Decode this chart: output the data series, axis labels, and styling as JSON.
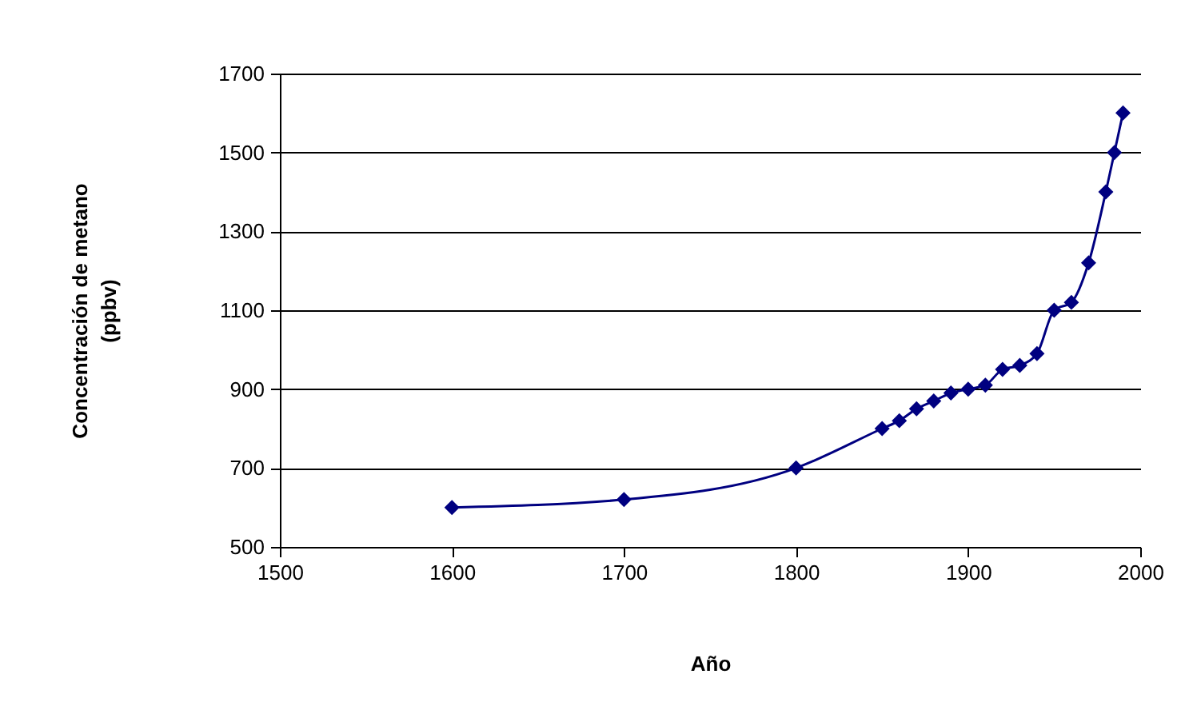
{
  "chart_data": {
    "type": "line",
    "xlabel": "Año",
    "ylabel": "Concentración de metano\n(ppbv)",
    "x": [
      1600,
      1700,
      1800,
      1850,
      1860,
      1870,
      1880,
      1890,
      1900,
      1910,
      1920,
      1930,
      1940,
      1950,
      1960,
      1970,
      1980,
      1985,
      1990
    ],
    "series": [
      {
        "color": "#000080",
        "values": [
          600,
          620,
          700,
          800,
          820,
          850,
          870,
          890,
          900,
          910,
          950,
          960,
          990,
          1100,
          1120,
          1220,
          1400,
          1500,
          1600
        ]
      }
    ],
    "xlim": [
      1500,
      2000
    ],
    "xticks": [
      1500,
      1600,
      1700,
      1800,
      1900,
      2000
    ],
    "ylim": [
      500,
      1700
    ],
    "yticks": [
      500,
      700,
      900,
      1100,
      1300,
      1500,
      1700
    ],
    "grid": "y",
    "marker": "diamond",
    "line_style": "solid"
  }
}
